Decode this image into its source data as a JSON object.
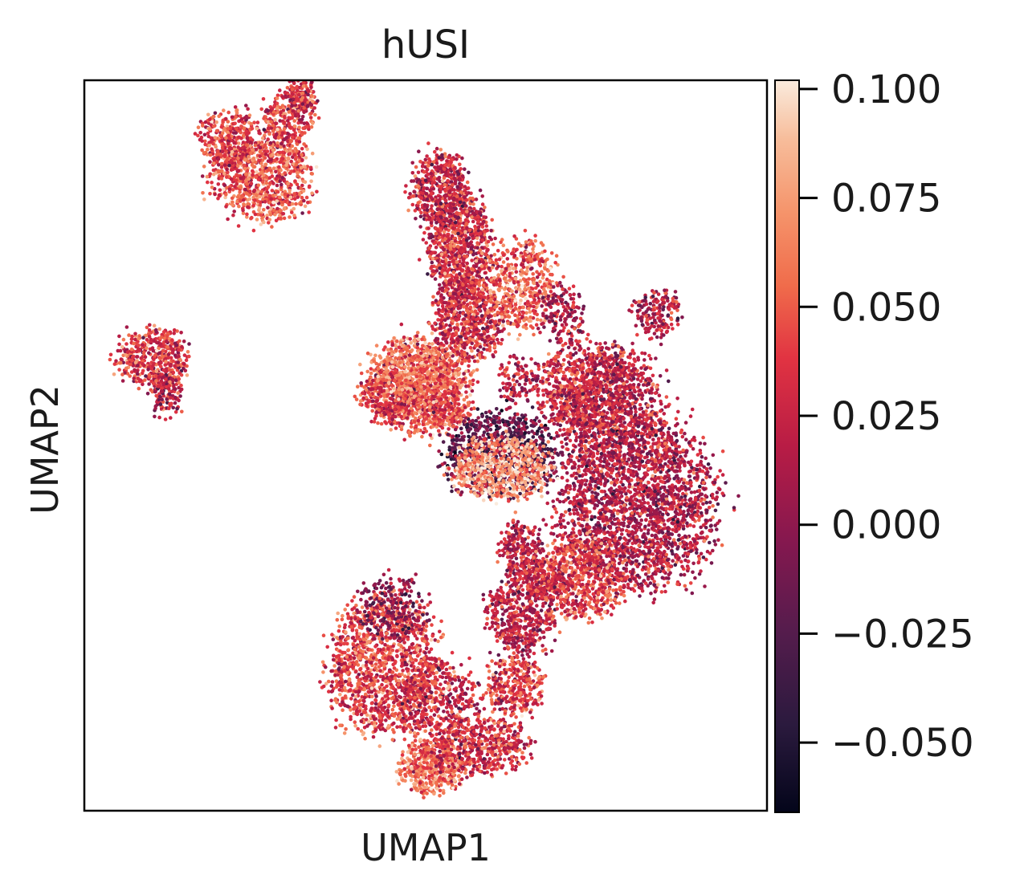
{
  "chart_data": {
    "type": "scatter",
    "title": "hUSI",
    "xlabel": "UMAP1",
    "ylabel": "UMAP2",
    "grid": false,
    "colormap": "rocket",
    "colorbar": {
      "range": [
        -0.066,
        0.102
      ],
      "ticks": [
        0.1,
        0.075,
        0.05,
        0.025,
        0.0,
        -0.025,
        -0.05
      ],
      "tick_labels": [
        "0.100",
        "0.075",
        "0.050",
        "0.025",
        "0.000",
        "−0.025",
        "−0.050"
      ]
    },
    "xlim": [
      0,
      100
    ],
    "ylim": [
      0,
      100
    ],
    "clusters": [
      {
        "cx": 26,
        "cy": 13,
        "rx": 7,
        "ry": 6,
        "value": 0.045,
        "n": 900
      },
      {
        "cx": 21,
        "cy": 8,
        "rx": 4,
        "ry": 4,
        "value": 0.04,
        "n": 300
      },
      {
        "cx": 30,
        "cy": 5,
        "rx": 3.5,
        "ry": 3.5,
        "value": 0.035,
        "n": 250
      },
      {
        "cx": 32,
        "cy": 2,
        "rx": 2,
        "ry": 2.5,
        "value": 0.03,
        "n": 120
      },
      {
        "cx": 10,
        "cy": 38,
        "rx": 5,
        "ry": 4,
        "value": 0.035,
        "n": 450
      },
      {
        "cx": 12,
        "cy": 43,
        "rx": 2.5,
        "ry": 3,
        "value": 0.02,
        "n": 120
      },
      {
        "cx": 44,
        "cy": 80,
        "rx": 8,
        "ry": 9,
        "value": 0.04,
        "n": 1300
      },
      {
        "cx": 51,
        "cy": 94,
        "rx": 4.5,
        "ry": 3.5,
        "value": 0.06,
        "n": 450
      },
      {
        "cx": 64,
        "cy": 73,
        "rx": 5,
        "ry": 5,
        "value": 0.02,
        "n": 500
      },
      {
        "cx": 49,
        "cy": 42,
        "rx": 7.5,
        "ry": 6.5,
        "value": 0.05,
        "n": 1000
      },
      {
        "cx": 56,
        "cy": 33,
        "rx": 5,
        "ry": 5,
        "value": 0.03,
        "n": 600
      },
      {
        "cx": 55,
        "cy": 23,
        "rx": 4.5,
        "ry": 7,
        "value": 0.03,
        "n": 800
      },
      {
        "cx": 52,
        "cy": 15,
        "rx": 4,
        "ry": 5,
        "value": 0.025,
        "n": 500
      },
      {
        "cx": 64,
        "cy": 28,
        "rx": 5,
        "ry": 6,
        "value": 0.05,
        "n": 500
      },
      {
        "cx": 61,
        "cy": 51,
        "rx": 8,
        "ry": 5.5,
        "value": -0.02,
        "n": 900
      },
      {
        "cx": 64,
        "cy": 64,
        "rx": 3,
        "ry": 3.5,
        "value": 0.02,
        "n": 220
      },
      {
        "cx": 81,
        "cy": 58,
        "rx": 11,
        "ry": 11,
        "value": 0.015,
        "n": 2200
      },
      {
        "cx": 73,
        "cy": 42,
        "rx": 7,
        "ry": 5.5,
        "value": 0.03,
        "n": 700
      },
      {
        "cx": 77,
        "cy": 45,
        "rx": 8,
        "ry": 8,
        "value": 0.02,
        "n": 900
      },
      {
        "cx": 61,
        "cy": 53,
        "rx": 7,
        "ry": 4,
        "value": 0.075,
        "n": 650
      },
      {
        "cx": 73,
        "cy": 68,
        "rx": 6,
        "ry": 5.5,
        "value": 0.04,
        "n": 600
      },
      {
        "cx": 67,
        "cy": 68,
        "rx": 3,
        "ry": 2.5,
        "value": 0.03,
        "n": 200
      },
      {
        "cx": 53,
        "cy": 45,
        "rx": 3,
        "ry": 2.5,
        "value": 0.04,
        "n": 150
      },
      {
        "cx": 45,
        "cy": 43,
        "rx": 4,
        "ry": 3,
        "value": 0.03,
        "n": 200
      },
      {
        "cx": 48,
        "cy": 40,
        "rx": 5,
        "ry": 4,
        "value": 0.06,
        "n": 350
      },
      {
        "cx": 53,
        "cy": 40,
        "rx": 2.5,
        "ry": 2,
        "value": 0.045,
        "n": 80
      },
      {
        "cx": 58,
        "cy": 91,
        "rx": 7,
        "ry": 4,
        "value": 0.03,
        "n": 500
      },
      {
        "cx": 63,
        "cy": 83,
        "rx": 4,
        "ry": 4,
        "value": 0.035,
        "n": 300
      },
      {
        "cx": 52,
        "cy": 85,
        "rx": 6,
        "ry": 5,
        "value": 0.025,
        "n": 350
      },
      {
        "cx": 45,
        "cy": 72,
        "rx": 5,
        "ry": 4,
        "value": 0.0,
        "n": 200
      },
      {
        "cx": 63,
        "cy": 41,
        "rx": 2.5,
        "ry": 3,
        "value": 0.02,
        "n": 100
      },
      {
        "cx": 70,
        "cy": 32,
        "rx": 3,
        "ry": 4,
        "value": 0.01,
        "n": 150
      },
      {
        "cx": 84,
        "cy": 32,
        "rx": 3.5,
        "ry": 3,
        "value": 0.02,
        "n": 180
      }
    ]
  }
}
